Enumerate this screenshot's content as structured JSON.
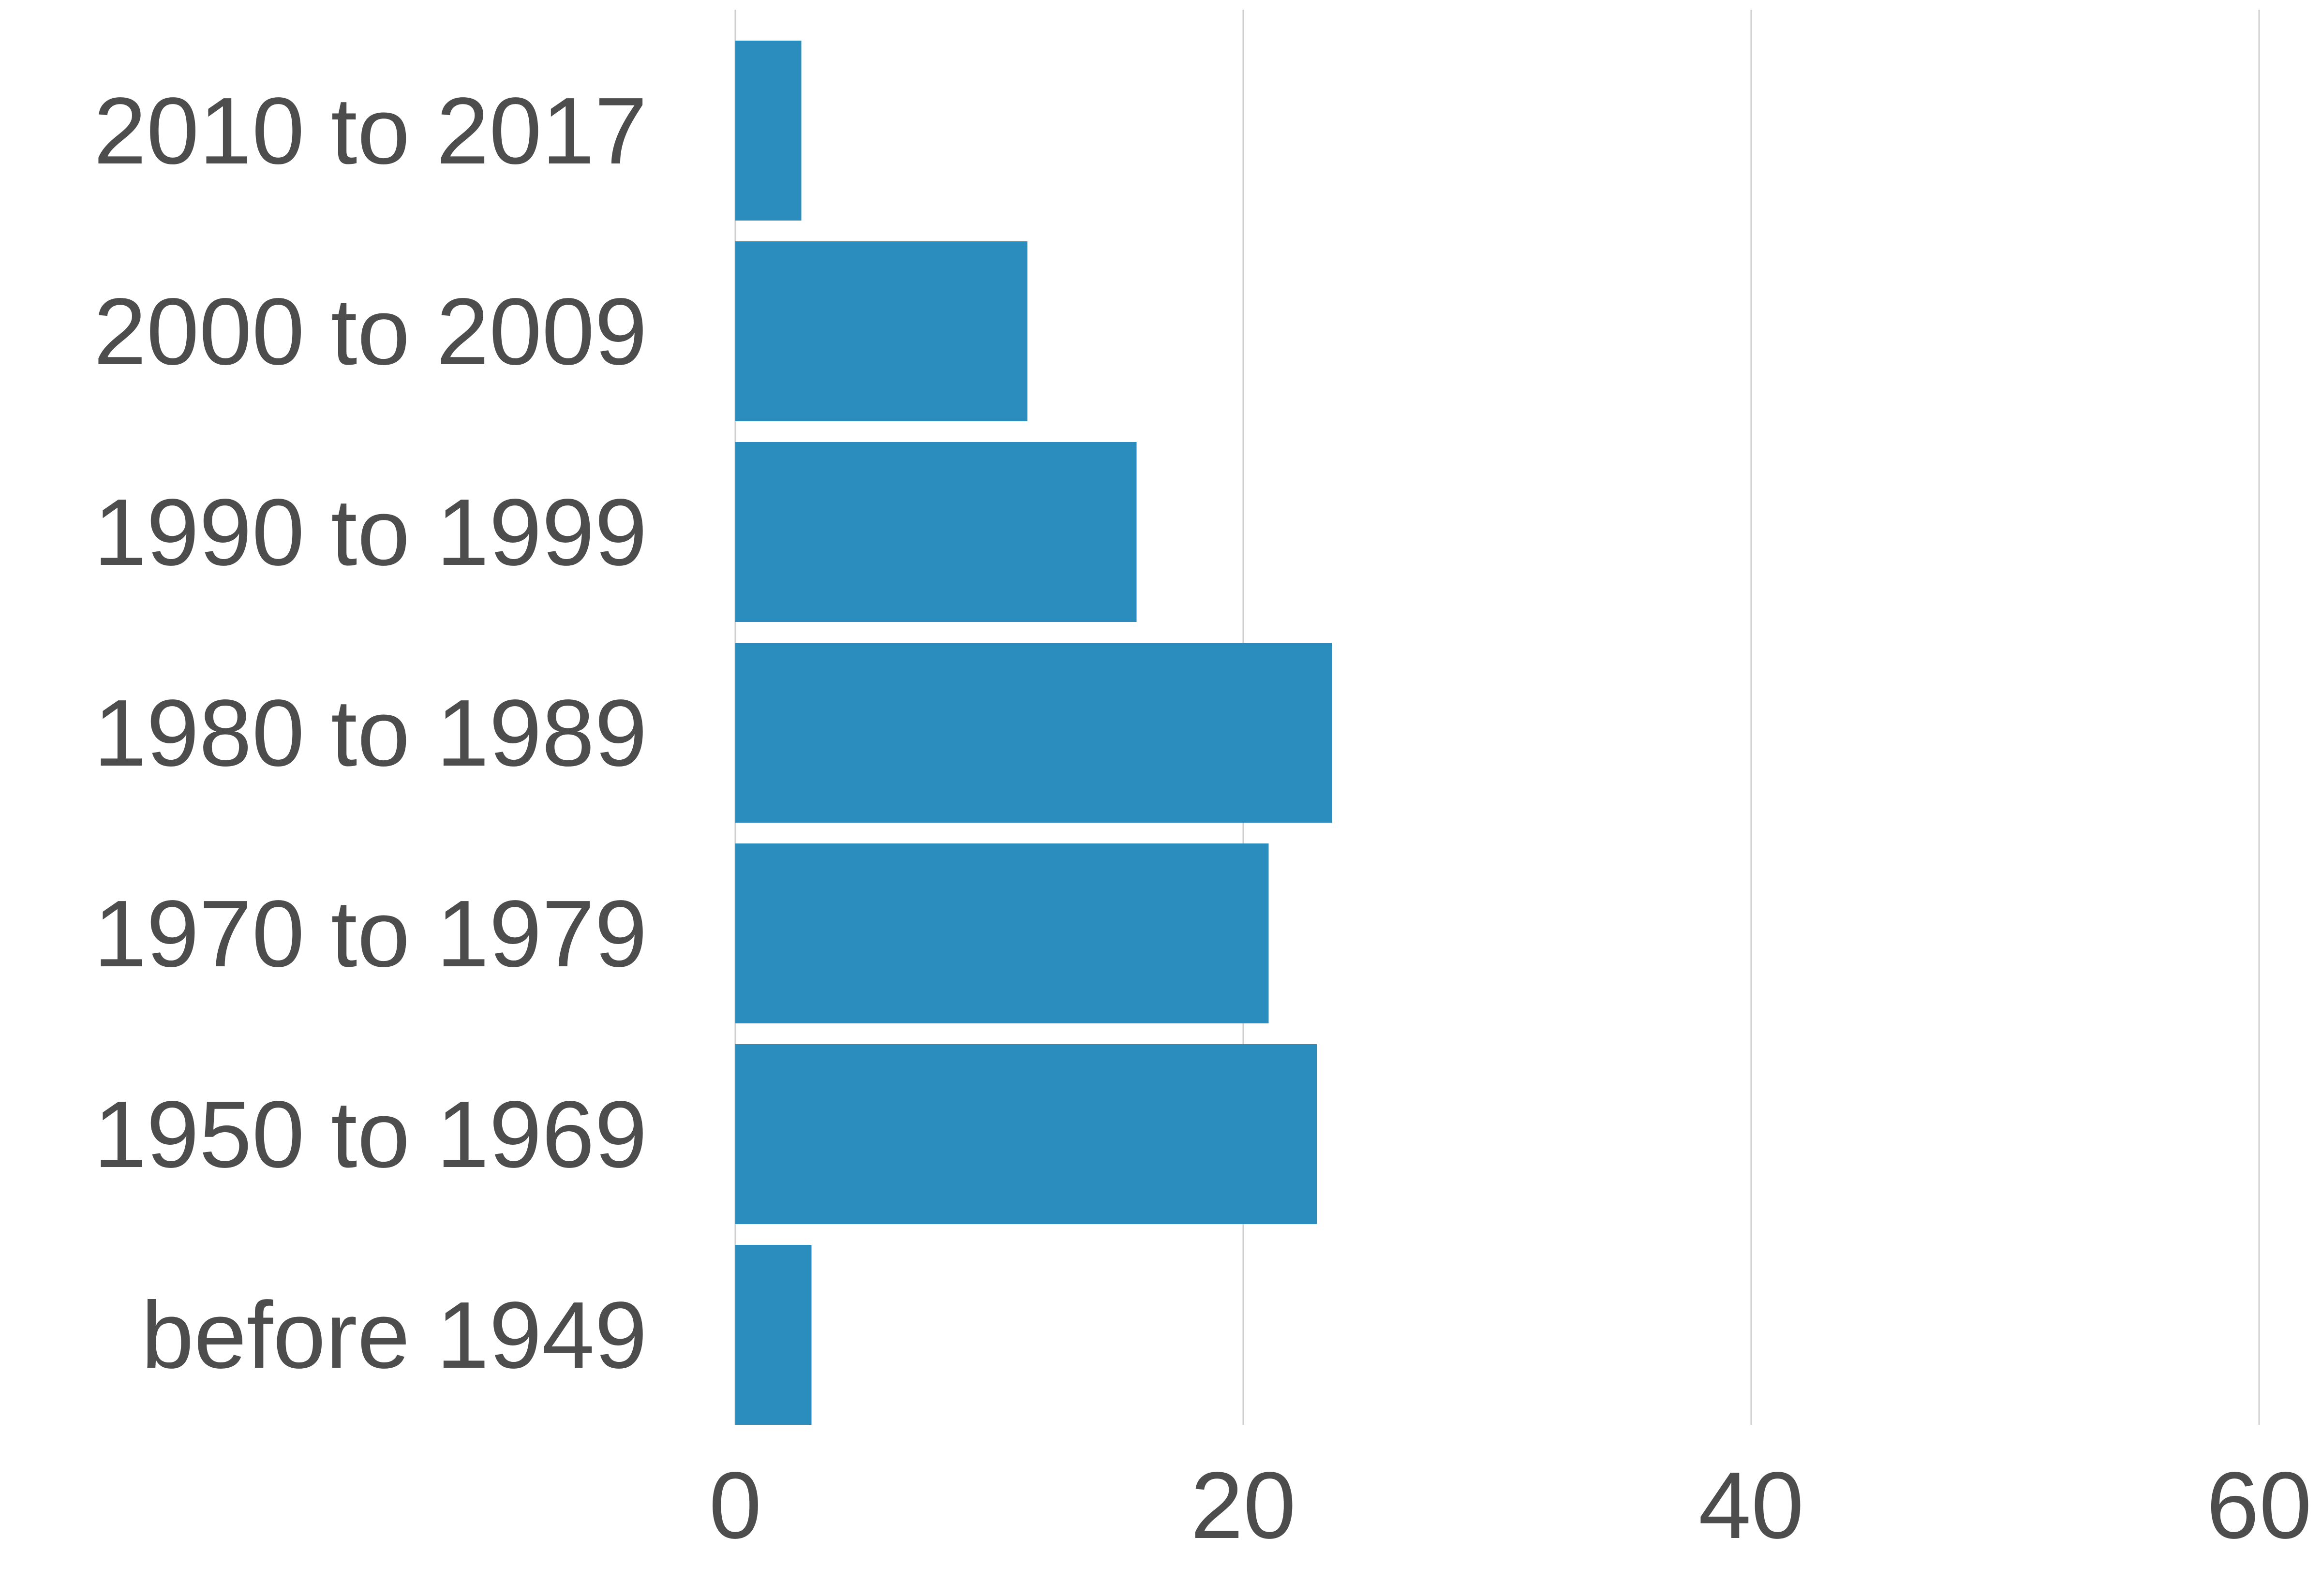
{
  "chart_data": {
    "type": "bar",
    "orientation": "horizontal",
    "title": "",
    "xlabel": "",
    "ylabel": "",
    "categories": [
      "2010 to 2017",
      "2000 to 2009",
      "1990 to 1999",
      "1980 to 1989",
      "1970 to 1979",
      "1950 to 1969",
      "before 1949"
    ],
    "values": [
      2.6,
      11.5,
      15.8,
      23.5,
      21.0,
      22.9,
      3.0
    ],
    "xlim": [
      0,
      62
    ],
    "xticks": [
      0,
      20,
      40,
      60
    ],
    "tick_labels": [
      "0",
      "20",
      "40",
      "60"
    ],
    "grid": "vertical",
    "bar_color": "#2b8cbe",
    "grid_color": "#cfcfcf",
    "text_color": "#4d4d4d"
  }
}
